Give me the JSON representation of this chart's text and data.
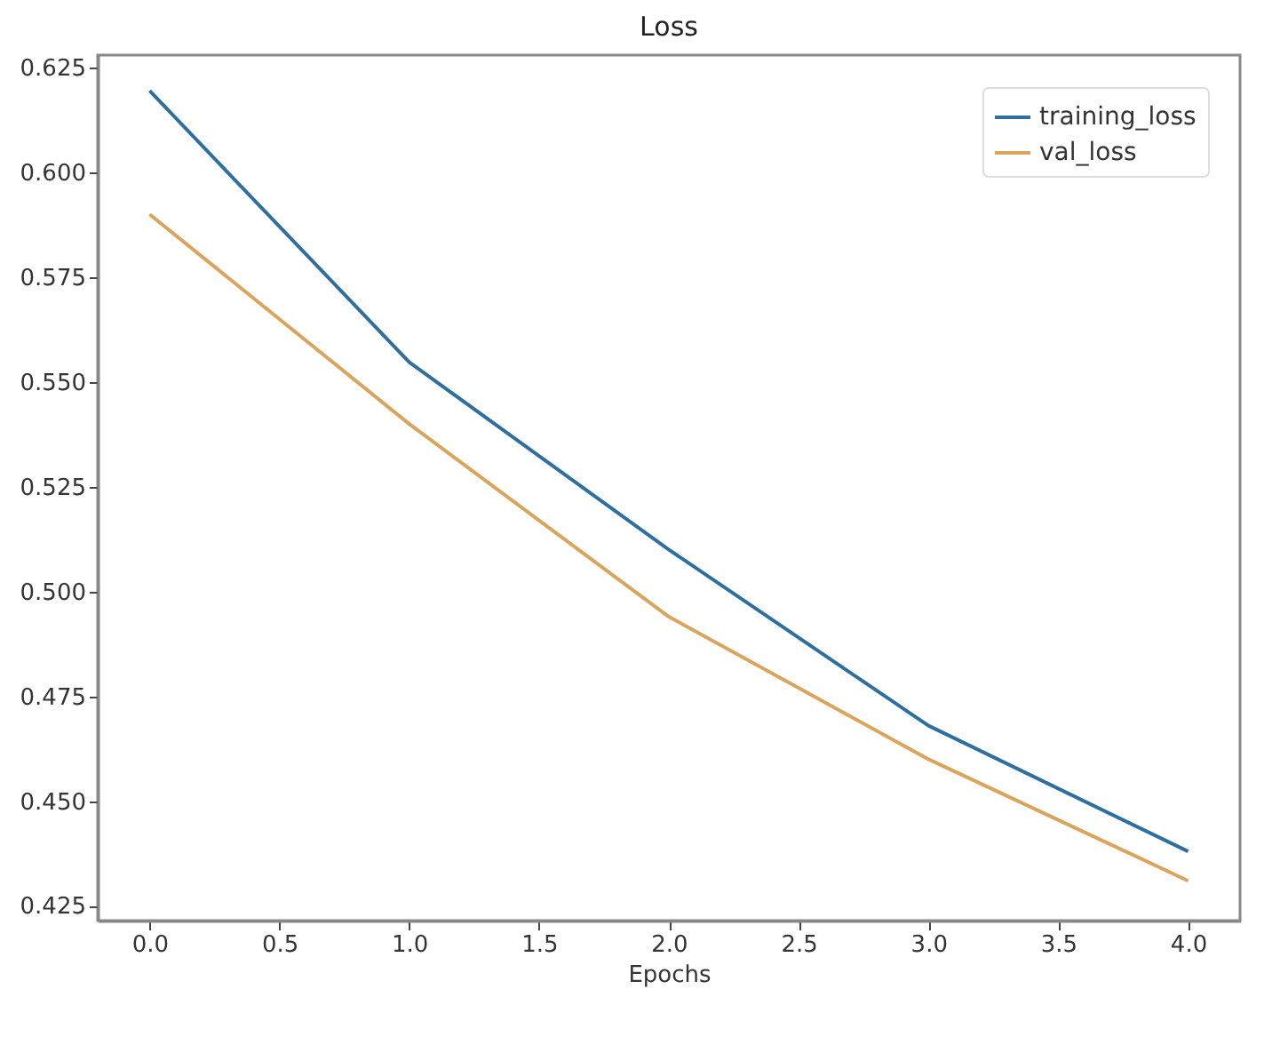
{
  "chart_data": {
    "type": "line",
    "title": "Loss",
    "xlabel": "Epochs",
    "x": [
      0,
      1,
      2,
      3,
      4
    ],
    "series": [
      {
        "name": "training_loss",
        "color": "#2f6f9f",
        "values": [
          0.6195,
          0.5547,
          0.51,
          0.468,
          0.438
        ]
      },
      {
        "name": "val_loss",
        "color": "#d9a55c",
        "values": [
          0.59,
          0.54,
          0.494,
          0.46,
          0.431
        ]
      }
    ],
    "xlim": [
      -0.2,
      4.2
    ],
    "xticks": [
      {
        "value": 0,
        "label": "0.0"
      },
      {
        "value": 0.5,
        "label": "0.5"
      },
      {
        "value": 1,
        "label": "1.0"
      },
      {
        "value": 1.5,
        "label": "1.5"
      },
      {
        "value": 2,
        "label": "2.0"
      },
      {
        "value": 2.5,
        "label": "2.5"
      },
      {
        "value": 3,
        "label": "3.0"
      },
      {
        "value": 3.5,
        "label": "3.5"
      },
      {
        "value": 4,
        "label": "4.0"
      }
    ],
    "ylim": [
      0.4215,
      0.628
    ],
    "yticks": [
      {
        "value": 0.425,
        "label": "0.425"
      },
      {
        "value": 0.45,
        "label": "0.450"
      },
      {
        "value": 0.475,
        "label": "0.475"
      },
      {
        "value": 0.5,
        "label": "0.500"
      },
      {
        "value": 0.525,
        "label": "0.525"
      },
      {
        "value": 0.55,
        "label": "0.550"
      },
      {
        "value": 0.575,
        "label": "0.575"
      },
      {
        "value": 0.6,
        "label": "0.600"
      },
      {
        "value": 0.625,
        "label": "0.625"
      }
    ],
    "legend": "top right",
    "grid": false
  }
}
